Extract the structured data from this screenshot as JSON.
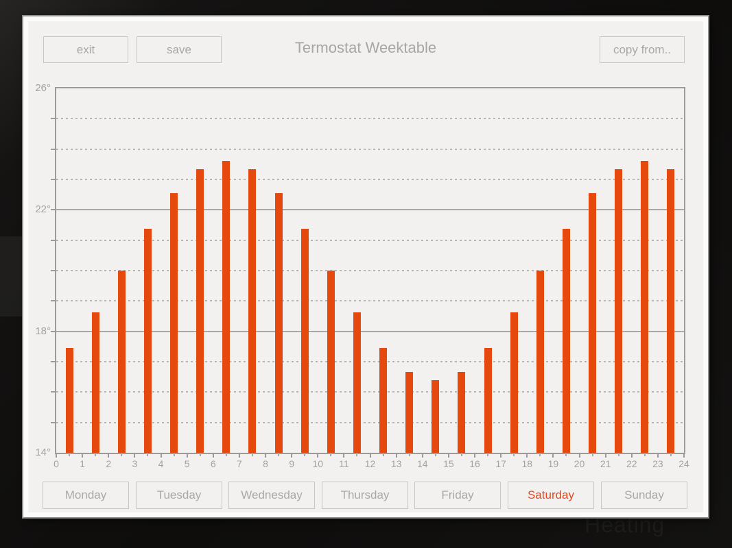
{
  "window": {
    "title": "Termostat Weektable",
    "background_text": "Heating"
  },
  "toolbar": {
    "exit_label": "exit",
    "save_label": "save",
    "copy_from_label": "copy from.."
  },
  "day_tabs": {
    "days": [
      "Monday",
      "Tuesday",
      "Wednesday",
      "Thursday",
      "Friday",
      "Saturday",
      "Sunday"
    ],
    "selected": "Saturday"
  },
  "colors": {
    "bar": "#e5490e",
    "selected_day_text": "#e8461f",
    "panel_bg": "#f2f1ef",
    "panel_border": "#fbfbfa",
    "button_border": "#c7c6c5",
    "muted_text": "#a7a6a5",
    "axis_line": "#9d9b9a",
    "dashed_grid": "#b7b5b3",
    "backdrop": "#0e0d0c"
  },
  "chart_data": {
    "type": "bar",
    "title": "Termostat Weektable",
    "hours": [
      0,
      1,
      2,
      3,
      4,
      5,
      6,
      7,
      8,
      9,
      10,
      11,
      12,
      13,
      14,
      15,
      16,
      17,
      18,
      19,
      20,
      21,
      22,
      23
    ],
    "values": [
      17.45,
      18.62,
      20.0,
      21.38,
      22.55,
      23.33,
      23.6,
      23.33,
      22.55,
      21.38,
      20.0,
      18.62,
      17.45,
      16.67,
      16.4,
      16.67,
      17.45,
      18.62,
      20.0,
      21.38,
      22.55,
      23.33,
      23.6,
      23.33
    ],
    "unit": "°",
    "ylim": [
      14,
      26
    ],
    "ytick_values": [
      26,
      22,
      18,
      14
    ],
    "ytick_labels": [
      "26°",
      "22°",
      "18°",
      "14°"
    ],
    "solid_gridlines": [
      22,
      18
    ],
    "dashed_gridlines": [
      25,
      24,
      23,
      21,
      20,
      19,
      17,
      16,
      15
    ],
    "xtick_labels": [
      "0",
      "1",
      "2",
      "3",
      "4",
      "5",
      "6",
      "7",
      "8",
      "9",
      "10",
      "11",
      "12",
      "13",
      "14",
      "15",
      "16",
      "17",
      "18",
      "19",
      "20",
      "21",
      "22",
      "23",
      "24"
    ],
    "grid": true,
    "legend_position": "none",
    "bar_color": "#e5490e"
  }
}
